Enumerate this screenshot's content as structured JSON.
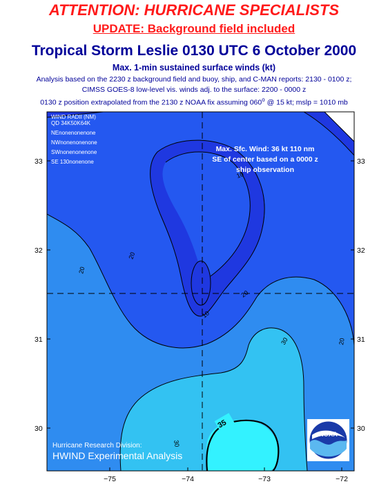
{
  "header": {
    "attention": "ATTENTION: HURRICANE SPECIALISTS",
    "update": "UPDATE: Background field included",
    "title": "Tropical Storm Leslie 0130 UTC 6 October 2000",
    "subtitle": "Max. 1-min sustained surface winds (kt)",
    "info_line1": "Analysis based on the 2230 z background field and buoy, ship, and C-MAN reports: 2130 -  0100 z;",
    "info_line2": "CIMSS GOES-8 low-level vis. winds adj. to the surface: 2200 - 0000 z",
    "info_line3_a": "0130 z position extrapolated from the 2130 z NOAA fix assuming 060",
    "info_line3_b": "o",
    "info_line3_c": " @ 15 kt; mslp = 1010 mb"
  },
  "wind_radii": {
    "title": "WIND RADII (NM)",
    "columns": "QD 34K50K64K",
    "rows": [
      "NEnonenonenone",
      "NWnonenonenone",
      "SWnonenonenone",
      "SE 130nonenone"
    ]
  },
  "annotation": [
    "Max. Sfc. Wind: 36 kt 110 nm",
    "SE of center based on a 0000 z",
    "ship observation"
  ],
  "credit": {
    "line1": "Hurricane Research Division:",
    "line2": "HWIND Experimental Analysis"
  },
  "axes": {
    "x_ticks": [
      "−75",
      "−74",
      "−73",
      "−72"
    ],
    "y_ticks_left": [
      "33",
      "32",
      "31",
      "30"
    ],
    "y_ticks_right": [
      "33",
      "32",
      "31",
      "30"
    ]
  },
  "contour_labels": {
    "c10a": "10",
    "c10b": "10",
    "c20a": "20",
    "c20b": "20",
    "c20c": "20",
    "c20d": "20",
    "c30a": "30",
    "c30b": "30",
    "c35": "35"
  },
  "logo": {
    "text": "NOAA"
  },
  "colors": {
    "band_lt10": "#1f38e0",
    "band_10_20": "#2458f0",
    "band_20_30": "#2f8cf0",
    "band_30_35": "#33c2f2",
    "band_gt35": "#33f2ff",
    "header_red": "#ff1a1a",
    "header_blue": "#000099"
  }
}
